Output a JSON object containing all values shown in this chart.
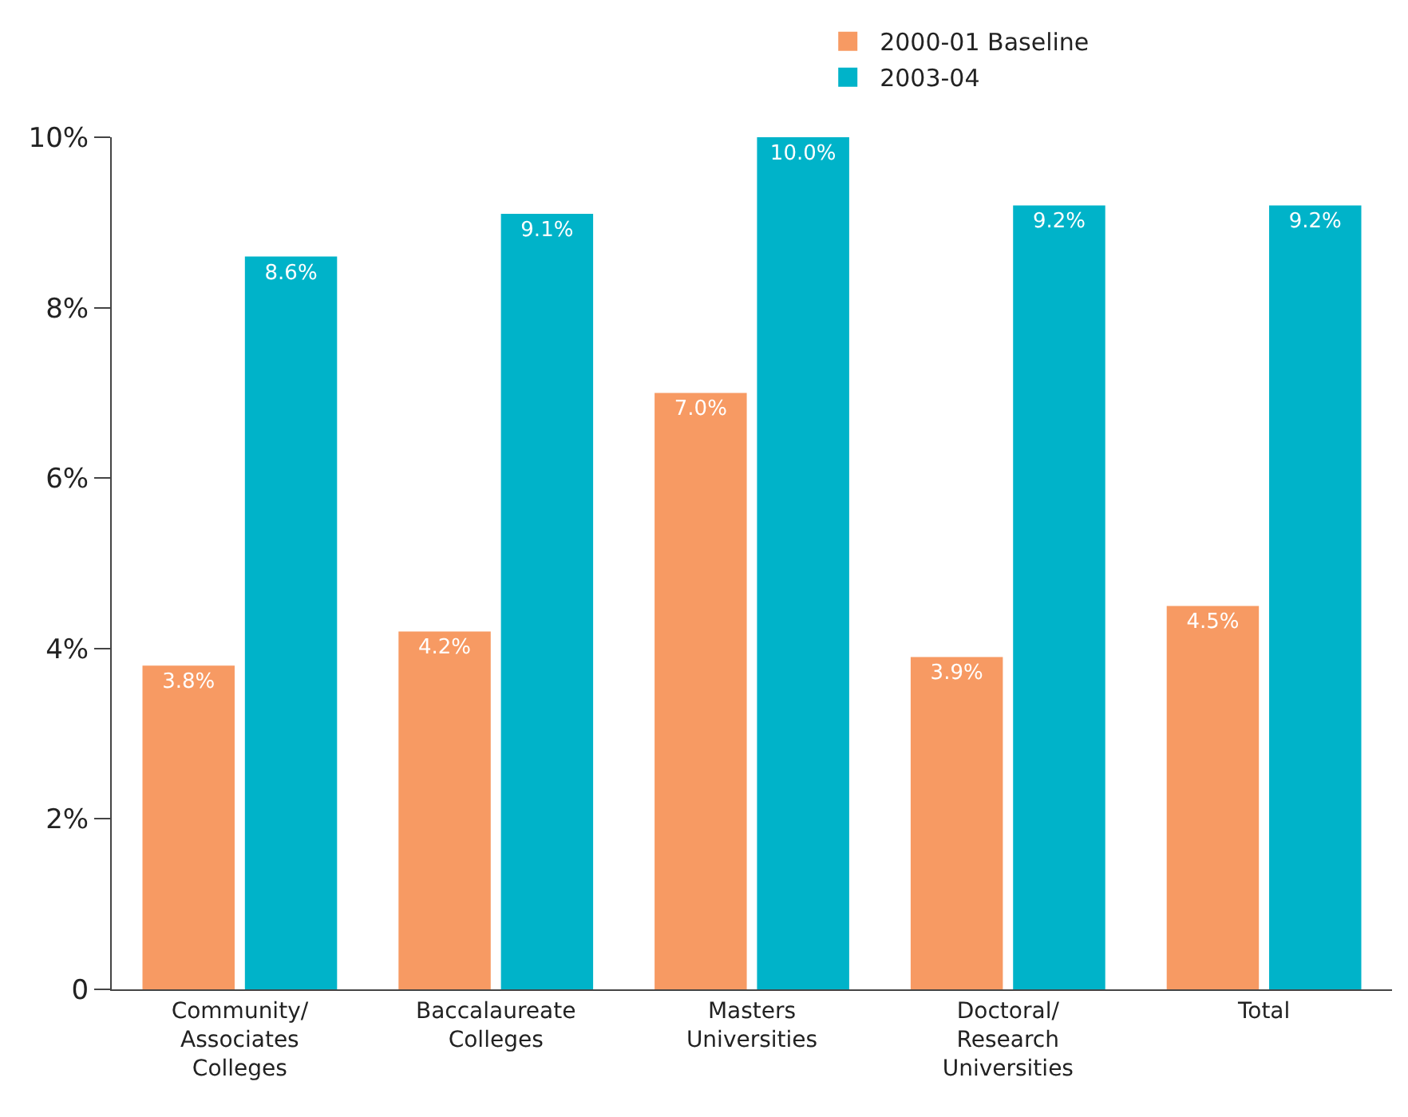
{
  "chart_data": {
    "type": "bar",
    "categories": [
      "Community/\nAssociates\nColleges",
      "Baccalaureate\nColleges",
      "Masters\nUniversities",
      "Doctoral/\nResearch\nUniversities",
      "Total"
    ],
    "series": [
      {
        "name": "2000-01 Baseline",
        "color": "#f79a63",
        "values": [
          3.8,
          4.2,
          7.0,
          3.9,
          4.5
        ],
        "value_labels": [
          "3.8%",
          "4.2%",
          "7.0%",
          "3.9%",
          "4.5%"
        ]
      },
      {
        "name": "2003-04",
        "color": "#00b3c9",
        "values": [
          8.6,
          9.1,
          10.0,
          9.2,
          9.2
        ],
        "value_labels": [
          "8.6%",
          "9.1%",
          "10.0%",
          "9.2%",
          "9.2%"
        ]
      }
    ],
    "ylim": [
      0,
      10
    ],
    "yticks": [
      {
        "value": 0,
        "label": "0"
      },
      {
        "value": 2,
        "label": "2%"
      },
      {
        "value": 4,
        "label": "4%"
      },
      {
        "value": 6,
        "label": "6%"
      },
      {
        "value": 8,
        "label": "8%"
      },
      {
        "value": 10,
        "label": "10%"
      }
    ],
    "legend": "top right"
  }
}
